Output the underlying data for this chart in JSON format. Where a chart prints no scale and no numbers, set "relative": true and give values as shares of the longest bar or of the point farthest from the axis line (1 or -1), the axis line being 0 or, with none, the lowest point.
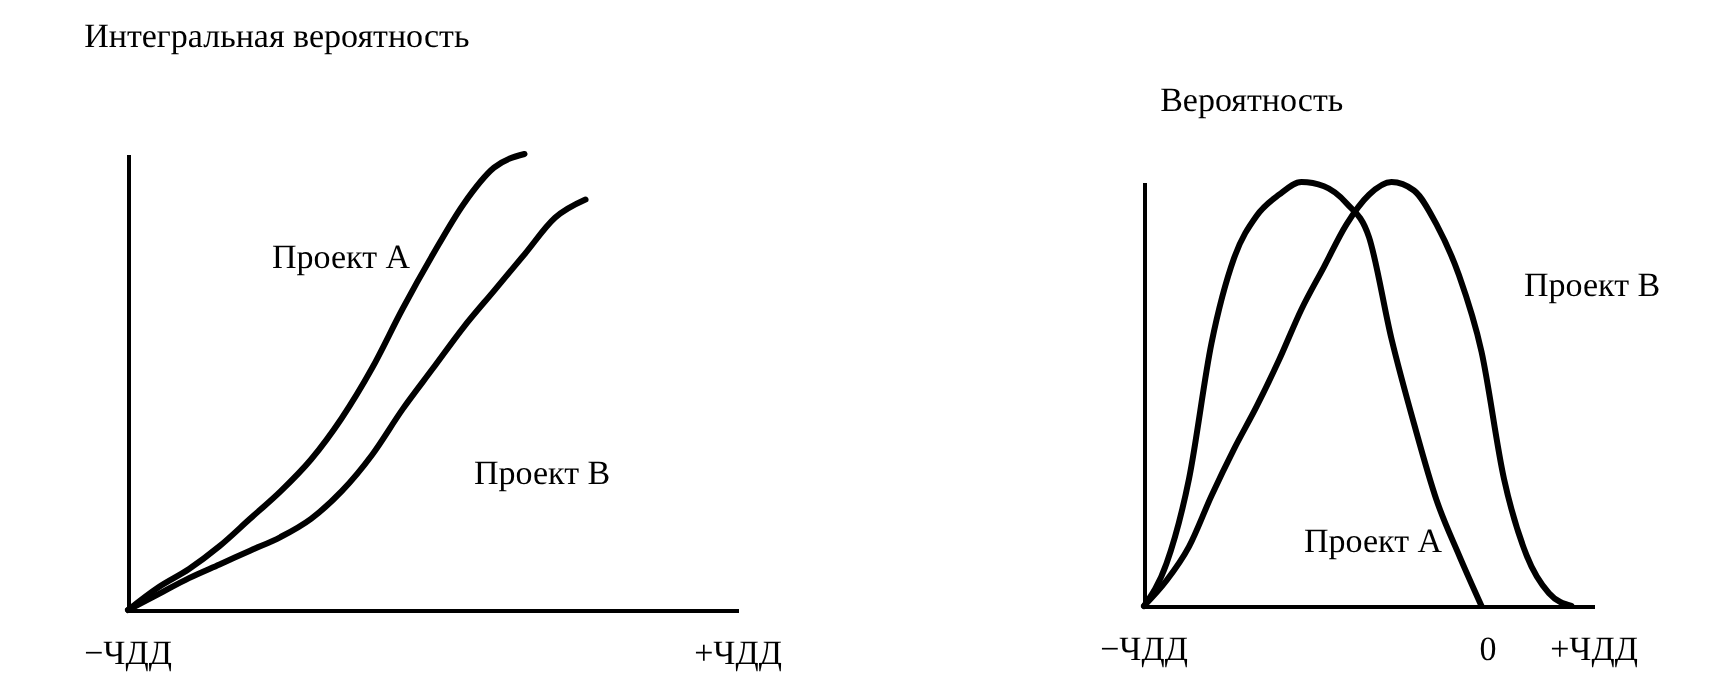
{
  "chart_data": [
    {
      "type": "line",
      "title": "Интегральная вероятность",
      "relative": true,
      "categories": [
        null,
        null,
        null,
        null,
        null,
        null,
        null,
        null,
        null,
        null,
        null,
        null,
        null,
        null,
        null,
        null,
        null,
        null,
        null,
        null,
        null
      ],
      "annotations": [
        "−ЧДД",
        "+ЧДД"
      ],
      "legend": false,
      "marker": "none",
      "line_style": "solid",
      "series": [
        {
          "name": "Проект А",
          "color": "#000000",
          "values": [
            0,
            0.05,
            0.09,
            0.14,
            0.2,
            0.26,
            0.33,
            0.42,
            0.53,
            0.66,
            0.78,
            0.89,
            0.97,
            1,
            null,
            null,
            null,
            null,
            null,
            null,
            null
          ]
        },
        {
          "name": "Проект В",
          "color": "#000000",
          "values": [
            0,
            0.035,
            0.07,
            0.1,
            0.13,
            0.16,
            0.2,
            0.26,
            0.34,
            0.44,
            0.53,
            0.62,
            0.7,
            0.78,
            0.86,
            0.9,
            null,
            null,
            null,
            null,
            null
          ]
        }
      ]
    },
    {
      "type": "line",
      "title": "Вероятность",
      "relative": true,
      "categories": [
        null,
        null,
        null,
        null,
        null,
        null,
        null,
        null,
        null,
        null,
        null,
        null,
        null,
        null,
        null,
        null,
        null,
        null,
        null,
        null,
        null
      ],
      "annotations": [
        "−ЧДД",
        "0",
        "+ЧДД"
      ],
      "legend": false,
      "marker": "none",
      "line_style": "solid",
      "series": [
        {
          "name": "Проект А",
          "color": "#000000",
          "values": [
            0,
            0.1,
            0.3,
            0.62,
            0.82,
            0.92,
            0.97,
            1,
            0.99,
            0.95,
            0.87,
            0.63,
            0.43,
            0.25,
            0.12,
            0,
            null,
            null,
            null,
            null,
            null
          ]
        },
        {
          "name": "Проект В",
          "color": "#000000",
          "values": [
            0,
            0.06,
            0.14,
            0.26,
            0.37,
            0.47,
            0.58,
            0.7,
            0.8,
            0.9,
            0.97,
            1,
            0.98,
            0.9,
            0.78,
            0.6,
            0.3,
            0.12,
            0.03,
            0,
            null
          ]
        }
      ]
    }
  ]
}
